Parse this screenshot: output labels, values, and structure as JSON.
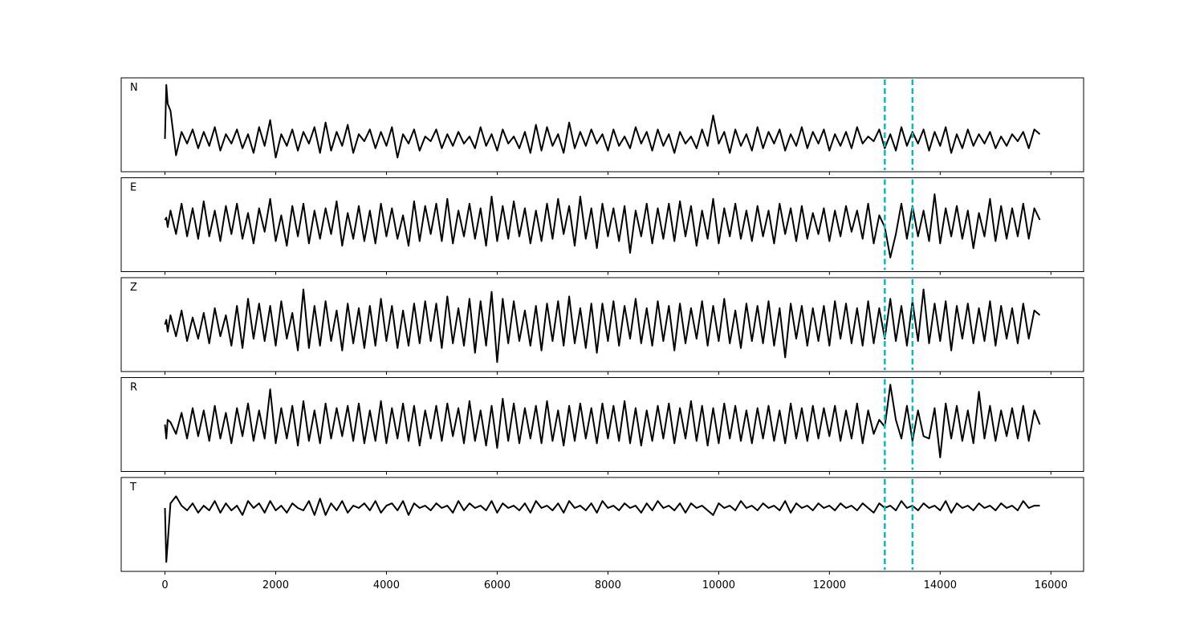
{
  "chart_data": {
    "type": "line",
    "xlim": [
      -790,
      16590
    ],
    "ylim": [
      -100,
      100
    ],
    "xticks": [
      0,
      2000,
      4000,
      6000,
      8000,
      10000,
      12000,
      14000,
      16000
    ],
    "vlines": [
      13000,
      13500
    ],
    "vline_color": "#00bfbf",
    "vline_style": "dashed",
    "x": [
      0,
      25,
      50,
      100,
      200,
      300,
      400,
      500,
      600,
      700,
      800,
      900,
      1000,
      1100,
      1200,
      1300,
      1400,
      1500,
      1600,
      1700,
      1800,
      1900,
      2000,
      2100,
      2200,
      2300,
      2400,
      2500,
      2600,
      2700,
      2800,
      2900,
      3000,
      3100,
      3200,
      3300,
      3400,
      3500,
      3600,
      3700,
      3800,
      3900,
      4000,
      4100,
      4200,
      4300,
      4400,
      4500,
      4600,
      4700,
      4800,
      4900,
      5000,
      5100,
      5200,
      5300,
      5400,
      5500,
      5600,
      5700,
      5800,
      5900,
      6000,
      6100,
      6200,
      6300,
      6400,
      6500,
      6600,
      6700,
      6800,
      6900,
      7000,
      7100,
      7200,
      7300,
      7400,
      7500,
      7600,
      7700,
      7800,
      7900,
      8000,
      8100,
      8200,
      8300,
      8400,
      8500,
      8600,
      8700,
      8800,
      8900,
      9000,
      9100,
      9200,
      9300,
      9400,
      9500,
      9600,
      9700,
      9800,
      9900,
      10000,
      10100,
      10200,
      10300,
      10400,
      10500,
      10600,
      10700,
      10800,
      10900,
      11000,
      11100,
      11200,
      11300,
      11400,
      11500,
      11600,
      11700,
      11800,
      11900,
      12000,
      12100,
      12200,
      12300,
      12400,
      12500,
      12600,
      12700,
      12800,
      12900,
      13000,
      13100,
      13200,
      13300,
      13400,
      13500,
      13600,
      13700,
      13800,
      13900,
      14000,
      14100,
      14200,
      14300,
      14400,
      14500,
      14600,
      14700,
      14800,
      14900,
      15000,
      15100,
      15200,
      15300,
      15400,
      15500,
      15600,
      15700,
      15800
    ],
    "series": [
      {
        "name": "N",
        "color": "#000000",
        "values": [
          -30,
          85,
          45,
          30,
          -65,
          -15,
          -40,
          -10,
          -50,
          -15,
          -45,
          -5,
          -55,
          -20,
          -40,
          -10,
          -50,
          -20,
          -60,
          -5,
          -45,
          10,
          -70,
          -20,
          -45,
          -10,
          -55,
          -15,
          -40,
          -5,
          -60,
          5,
          -55,
          -15,
          -45,
          0,
          -60,
          -20,
          -35,
          -10,
          -50,
          -15,
          -45,
          -5,
          -70,
          -20,
          -40,
          -10,
          -55,
          -25,
          -35,
          -10,
          -50,
          -20,
          -45,
          -15,
          -40,
          -25,
          -50,
          -5,
          -45,
          -20,
          -55,
          -10,
          -40,
          -25,
          -50,
          -15,
          -60,
          0,
          -55,
          -5,
          -45,
          -20,
          -60,
          5,
          -50,
          -15,
          -45,
          -10,
          -40,
          -20,
          -55,
          -10,
          -45,
          -25,
          -50,
          -5,
          -40,
          -15,
          -55,
          -10,
          -45,
          -20,
          -60,
          -15,
          -40,
          -25,
          -50,
          -10,
          -45,
          20,
          -40,
          -15,
          -60,
          -10,
          -45,
          -20,
          -55,
          -5,
          -50,
          -15,
          -40,
          -10,
          -55,
          -20,
          -45,
          -5,
          -50,
          -15,
          -40,
          -10,
          -55,
          -20,
          -45,
          -15,
          -50,
          -5,
          -40,
          -25,
          -35,
          -10,
          -50,
          -20,
          -55,
          -5,
          -45,
          -15,
          -40,
          -10,
          -55,
          -15,
          -45,
          -5,
          -60,
          -20,
          -50,
          -10,
          -45,
          -20,
          -40,
          -15,
          -50,
          -25,
          -45,
          -20,
          -35,
          -15,
          -50,
          -10,
          -20
        ]
      },
      {
        "name": "E",
        "color": "#000000",
        "values": [
          10,
          15,
          -5,
          30,
          -20,
          45,
          -25,
          35,
          -30,
          50,
          -25,
          30,
          -35,
          40,
          -20,
          45,
          -30,
          25,
          -40,
          35,
          -15,
          55,
          -35,
          20,
          -45,
          40,
          -25,
          45,
          -40,
          30,
          -30,
          35,
          -20,
          50,
          -45,
          25,
          -30,
          40,
          -35,
          30,
          -40,
          45,
          -25,
          35,
          -30,
          20,
          -45,
          50,
          -35,
          40,
          -20,
          45,
          -35,
          55,
          -40,
          30,
          -25,
          45,
          -30,
          35,
          -45,
          60,
          -35,
          40,
          -30,
          50,
          -25,
          35,
          -40,
          30,
          -35,
          45,
          -30,
          55,
          -20,
          40,
          -45,
          60,
          -30,
          35,
          -50,
          45,
          -25,
          35,
          -35,
          40,
          -60,
          30,
          -25,
          45,
          -40,
          35,
          -30,
          45,
          -35,
          50,
          -25,
          40,
          -45,
          30,
          -30,
          55,
          -40,
          35,
          -25,
          45,
          -30,
          30,
          -35,
          40,
          -25,
          30,
          -40,
          45,
          -20,
          35,
          -35,
          40,
          -30,
          25,
          -20,
          35,
          -35,
          30,
          -25,
          40,
          -15,
          30,
          -30,
          45,
          -40,
          20,
          -5,
          -70,
          -20,
          45,
          -30,
          40,
          -25,
          30,
          -35,
          65,
          -40,
          35,
          -25,
          40,
          -30,
          30,
          -50,
          25,
          -25,
          55,
          -35,
          40,
          -30,
          35,
          -25,
          45,
          -30,
          35,
          10
        ]
      },
      {
        "name": "Z",
        "color": "#000000",
        "values": [
          0,
          10,
          -15,
          20,
          -25,
          30,
          -35,
          15,
          -30,
          25,
          -40,
          35,
          -25,
          20,
          -45,
          40,
          -50,
          55,
          -30,
          45,
          -35,
          40,
          -45,
          50,
          -30,
          25,
          -55,
          75,
          -50,
          40,
          -45,
          50,
          -35,
          30,
          -55,
          45,
          -40,
          35,
          -50,
          40,
          -45,
          55,
          -35,
          40,
          -50,
          30,
          -45,
          45,
          -40,
          50,
          -35,
          45,
          -50,
          60,
          -40,
          35,
          -45,
          55,
          -60,
          50,
          -45,
          70,
          -80,
          55,
          -40,
          50,
          -35,
          30,
          -45,
          40,
          -55,
          45,
          -35,
          50,
          -45,
          60,
          -40,
          35,
          -50,
          45,
          -60,
          45,
          -35,
          50,
          -45,
          40,
          -30,
          55,
          -40,
          35,
          -45,
          50,
          -35,
          40,
          -55,
          45,
          -40,
          35,
          -30,
          50,
          -45,
          40,
          -35,
          55,
          -40,
          30,
          -50,
          45,
          -35,
          40,
          -40,
          50,
          -45,
          35,
          -70,
          45,
          -30,
          40,
          -45,
          35,
          -35,
          40,
          -45,
          50,
          -30,
          45,
          -40,
          35,
          -45,
          50,
          -40,
          35,
          -30,
          55,
          -35,
          40,
          -45,
          50,
          -35,
          75,
          -40,
          45,
          -35,
          50,
          -55,
          40,
          -30,
          45,
          -40,
          35,
          -35,
          50,
          -45,
          40,
          -30,
          35,
          -40,
          45,
          -30,
          30,
          20
        ]
      },
      {
        "name": "R",
        "color": "#000000",
        "values": [
          0,
          -30,
          10,
          5,
          -20,
          25,
          -30,
          35,
          -25,
          30,
          -35,
          40,
          -30,
          25,
          -40,
          35,
          -25,
          45,
          -35,
          30,
          -30,
          75,
          -40,
          35,
          -30,
          40,
          -45,
          50,
          -35,
          30,
          -40,
          45,
          -30,
          35,
          -25,
          40,
          -35,
          45,
          -40,
          30,
          -35,
          50,
          -40,
          35,
          -30,
          45,
          -35,
          40,
          -45,
          30,
          -30,
          40,
          -35,
          45,
          -25,
          35,
          -40,
          50,
          -35,
          30,
          -45,
          40,
          -50,
          55,
          -35,
          45,
          -40,
          35,
          -30,
          40,
          -40,
          50,
          -35,
          30,
          -45,
          40,
          -35,
          45,
          -30,
          35,
          -40,
          45,
          -30,
          40,
          -35,
          50,
          -40,
          35,
          -45,
          30,
          -35,
          40,
          -30,
          45,
          -40,
          35,
          -30,
          50,
          -35,
          40,
          -45,
          35,
          -40,
          45,
          -30,
          40,
          -35,
          30,
          -40,
          35,
          -30,
          40,
          -35,
          30,
          -40,
          45,
          -30,
          35,
          -35,
          40,
          -30,
          35,
          -25,
          40,
          -35,
          30,
          -30,
          45,
          -40,
          30,
          -20,
          10,
          -5,
          85,
          10,
          -30,
          40,
          -35,
          30,
          -25,
          -30,
          35,
          -70,
          45,
          -30,
          40,
          -35,
          30,
          -40,
          70,
          -30,
          40,
          -35,
          30,
          -25,
          35,
          -30,
          40,
          -35,
          30,
          0
        ]
      },
      {
        "name": "T",
        "color": "#000000",
        "values": [
          35,
          -80,
          -40,
          45,
          60,
          40,
          30,
          45,
          25,
          40,
          30,
          50,
          25,
          45,
          30,
          40,
          20,
          50,
          35,
          45,
          25,
          50,
          30,
          40,
          25,
          45,
          35,
          30,
          50,
          20,
          55,
          20,
          45,
          30,
          50,
          25,
          40,
          35,
          45,
          30,
          50,
          25,
          40,
          45,
          30,
          50,
          20,
          45,
          35,
          40,
          30,
          45,
          35,
          40,
          25,
          50,
          30,
          45,
          35,
          40,
          30,
          50,
          25,
          45,
          35,
          40,
          30,
          45,
          25,
          50,
          35,
          40,
          30,
          45,
          25,
          50,
          35,
          40,
          30,
          45,
          25,
          50,
          35,
          40,
          30,
          45,
          35,
          40,
          25,
          45,
          30,
          50,
          35,
          40,
          30,
          45,
          25,
          45,
          35,
          40,
          30,
          20,
          45,
          35,
          40,
          30,
          50,
          35,
          40,
          30,
          45,
          35,
          40,
          30,
          50,
          25,
          45,
          35,
          40,
          30,
          45,
          35,
          40,
          30,
          45,
          35,
          40,
          30,
          45,
          35,
          25,
          45,
          35,
          40,
          30,
          50,
          35,
          40,
          30,
          45,
          35,
          40,
          30,
          50,
          25,
          45,
          35,
          40,
          30,
          45,
          35,
          40,
          30,
          45,
          35,
          40,
          30,
          50,
          35,
          40,
          40
        ]
      }
    ]
  }
}
